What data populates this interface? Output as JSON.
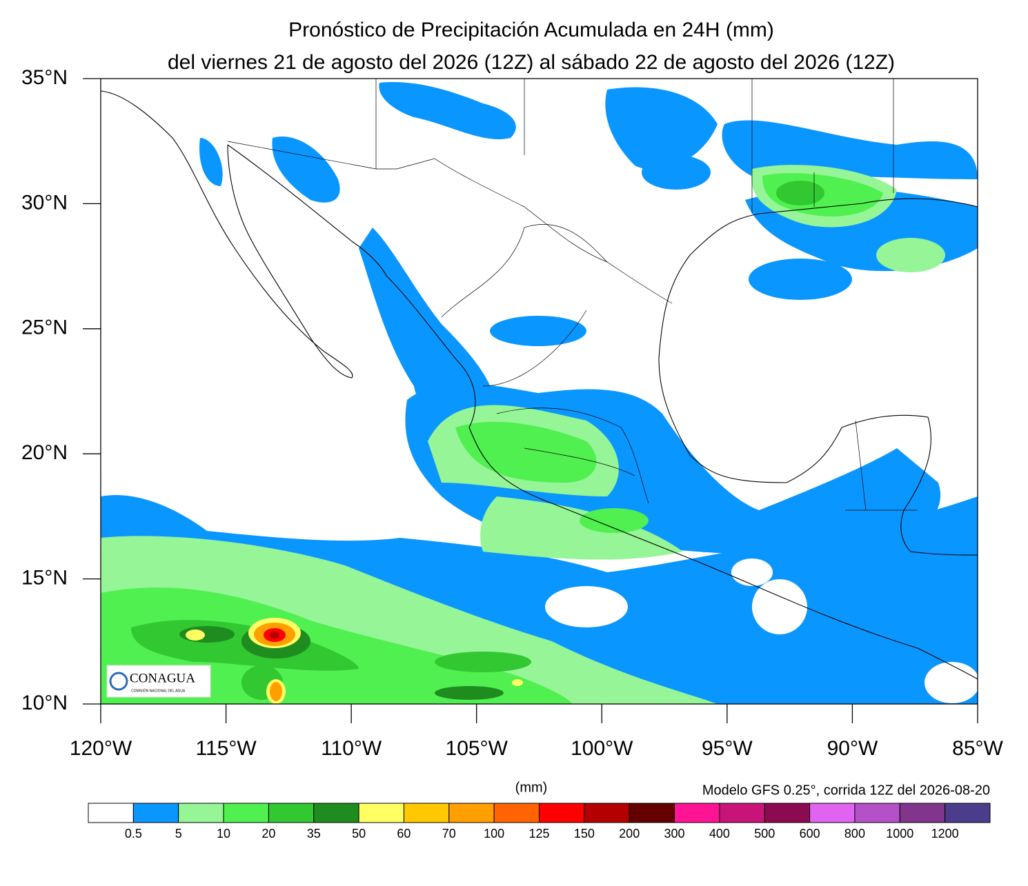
{
  "map": {
    "title": [
      "Pronóstico de Precipitación Acumulada en 24H (mm)",
      "del viernes 21 de agosto del 2026 (12Z) al sábado  22 de agosto del 2026 (12Z)"
    ],
    "lonlim": [
      -120,
      -85
    ],
    "latlim": [
      10,
      35
    ],
    "lon_ticks": [
      {
        "value": -120,
        "label": "120°W"
      },
      {
        "value": -115,
        "label": "115°W"
      },
      {
        "value": -110,
        "label": "110°W"
      },
      {
        "value": -105,
        "label": "105°W"
      },
      {
        "value": -100,
        "label": "100°W"
      },
      {
        "value": -95,
        "label": "95°W"
      },
      {
        "value": -90,
        "label": "90°W"
      },
      {
        "value": -85,
        "label": "85°W"
      }
    ],
    "lat_ticks": [
      {
        "value": 10,
        "label": "10°N"
      },
      {
        "value": 15,
        "label": "15°N"
      },
      {
        "value": 20,
        "label": "20°N"
      },
      {
        "value": 25,
        "label": "25°N"
      },
      {
        "value": 30,
        "label": "30°N"
      },
      {
        "value": 35,
        "label": "35°N"
      }
    ],
    "colorbar": {
      "unit": "(mm)",
      "levels": [
        0.5,
        5,
        10,
        20,
        35,
        50,
        60,
        70,
        100,
        125,
        150,
        200,
        300,
        400,
        500,
        600,
        800,
        1000,
        1200
      ],
      "colors": [
        "#ffffff",
        "#0a96ff",
        "#96f596",
        "#50f050",
        "#32c832",
        "#1e8c1e",
        "#ffff64",
        "#ffc800",
        "#ffa000",
        "#ff6400",
        "#ff0000",
        "#b40000",
        "#640000",
        "#ff1496",
        "#c81478",
        "#8c0a50",
        "#e164f0",
        "#b450c8",
        "#82358c",
        "#4b3c8c"
      ]
    },
    "model_note": "Modelo GFS 0.25°, corrida 12Z del 2026-08-20"
  },
  "logo": {
    "name": "CONAGUA",
    "subtitle": "COMISIÓN NACIONAL DEL AGUA"
  }
}
